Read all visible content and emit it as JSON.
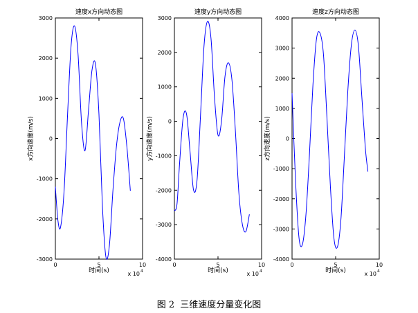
{
  "figure": {
    "caption_label": "图 2",
    "caption_text": "三维速度分量变化图"
  },
  "colors": {
    "line": "#0000ff",
    "axes": "#000000",
    "background": "#ffffff"
  },
  "chart_data": [
    {
      "type": "line",
      "title": "速度x方向动态图",
      "xlabel": "时间(s)",
      "ylabel": "x方向速度(m/s)",
      "x_exponent_label": "x 10",
      "x_exponent_power": "4",
      "xlim": [
        0,
        10
      ],
      "ylim": [
        -3000,
        3000
      ],
      "xticks": [
        0,
        5,
        10
      ],
      "yticks": [
        -3000,
        -2000,
        -1000,
        0,
        1000,
        2000,
        3000
      ],
      "grid": false,
      "series": [
        {
          "x": [
            0,
            0.3,
            0.6,
            1.0,
            1.4,
            1.8,
            2.2,
            2.6,
            3.0,
            3.4,
            3.8,
            4.2,
            4.6,
            5.0,
            5.4,
            5.8,
            6.2,
            6.6,
            7.0,
            7.4,
            7.8,
            8.2,
            8.6
          ],
          "y": [
            -1200,
            -2050,
            -2200,
            -1300,
            600,
            2300,
            2800,
            2100,
            400,
            -300,
            700,
            1700,
            1850,
            600,
            -1700,
            -2950,
            -2650,
            -1300,
            -200,
            400,
            500,
            -200,
            -1300
          ]
        }
      ]
    },
    {
      "type": "line",
      "title": "速度y方向动态图",
      "xlabel": "时间(s)",
      "ylabel": "y方向速度(m/s)",
      "x_exponent_label": "x 10",
      "x_exponent_power": "4",
      "xlim": [
        0,
        10
      ],
      "ylim": [
        -4000,
        3000
      ],
      "xticks": [
        0,
        5,
        10
      ],
      "yticks": [
        -4000,
        -3000,
        -2000,
        -1000,
        0,
        1000,
        2000,
        3000
      ],
      "grid": false,
      "series": [
        {
          "x": [
            0,
            0.3,
            0.6,
            1.0,
            1.4,
            1.8,
            2.2,
            2.6,
            3.0,
            3.4,
            3.8,
            4.2,
            4.6,
            5.0,
            5.4,
            5.8,
            6.2,
            6.6,
            7.0,
            7.4,
            7.8,
            8.2,
            8.6
          ],
          "y": [
            -2600,
            -2400,
            -1200,
            100,
            200,
            -900,
            -2000,
            -1700,
            200,
            2200,
            2900,
            2400,
            700,
            -400,
            0,
            1300,
            1700,
            1200,
            -300,
            -2100,
            -3000,
            -3200,
            -2700
          ]
        }
      ]
    },
    {
      "type": "line",
      "title": "速度z方向动态图",
      "xlabel": "时间(s)",
      "ylabel": "z方向速度(m/s)",
      "x_exponent_label": "x 10",
      "x_exponent_power": "4",
      "xlim": [
        0,
        10
      ],
      "ylim": [
        -4000,
        4000
      ],
      "xticks": [
        0,
        5,
        10
      ],
      "yticks": [
        -4000,
        -3000,
        -2000,
        -1000,
        0,
        1000,
        2000,
        3000,
        4000
      ],
      "grid": false,
      "series": [
        {
          "x": [
            0,
            0.4,
            0.8,
            1.2,
            1.6,
            2.0,
            2.4,
            2.8,
            3.2,
            3.6,
            4.0,
            4.4,
            4.8,
            5.2,
            5.6,
            6.0,
            6.4,
            6.8,
            7.2,
            7.6,
            8.0,
            8.4,
            8.7
          ],
          "y": [
            1500,
            -1400,
            -3300,
            -3500,
            -2500,
            -500,
            1800,
            3300,
            3500,
            2800,
            700,
            -1600,
            -3300,
            -3600,
            -2700,
            -600,
            1600,
            3100,
            3600,
            3100,
            1400,
            -300,
            -1100
          ]
        }
      ]
    }
  ]
}
